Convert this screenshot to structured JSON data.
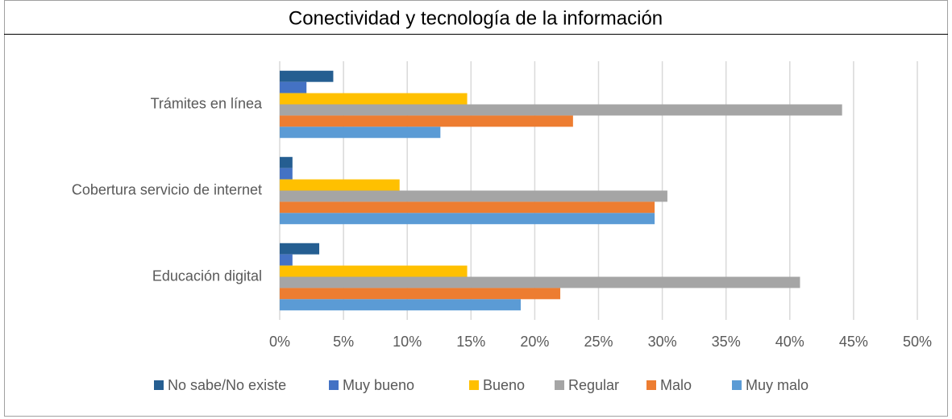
{
  "chart_data": {
    "type": "hbar",
    "title": "Conectividad y tecnología de la información",
    "categories": [
      "Trámites en línea",
      "Cobertura servicio de internet",
      "Educación digital"
    ],
    "series": [
      {
        "name": "No sabe/No existe",
        "color": "#255e91",
        "values": [
          4.2,
          1.0,
          3.1
        ]
      },
      {
        "name": "Muy bueno",
        "color": "#4472c4",
        "values": [
          2.1,
          1.0,
          1.0
        ]
      },
      {
        "name": "Bueno",
        "color": "#ffc000",
        "values": [
          14.7,
          9.4,
          14.7
        ]
      },
      {
        "name": "Regular",
        "color": "#a5a5a5",
        "values": [
          44.1,
          30.4,
          40.8
        ]
      },
      {
        "name": "Malo",
        "color": "#ed7d31",
        "values": [
          23.0,
          29.4,
          22.0
        ]
      },
      {
        "name": "Muy malo",
        "color": "#5b9bd5",
        "values": [
          12.6,
          29.4,
          18.9
        ]
      }
    ],
    "xlim": [
      0,
      50
    ],
    "xticks": [
      {
        "value": 0,
        "label": "0%"
      },
      {
        "value": 5,
        "label": "5%"
      },
      {
        "value": 10,
        "label": "10%"
      },
      {
        "value": 15,
        "label": "15%"
      },
      {
        "value": 20,
        "label": "20%"
      },
      {
        "value": 25,
        "label": "25%"
      },
      {
        "value": 30,
        "label": "30%"
      },
      {
        "value": 35,
        "label": "35%"
      },
      {
        "value": 40,
        "label": "40%"
      },
      {
        "value": 45,
        "label": "45%"
      },
      {
        "value": 50,
        "label": "50%"
      }
    ],
    "grid": true,
    "legend": "bottom"
  }
}
